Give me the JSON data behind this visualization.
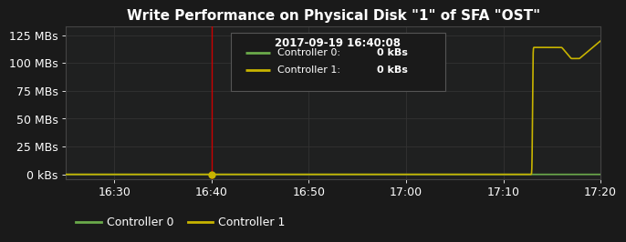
{
  "title": "Write Performance on Physical Disk \"1\" of SFA \"OST\"",
  "background_color": "#1a1a1a",
  "plot_bg_color": "#1f2020",
  "grid_color": "#333333",
  "text_color": "#ffffff",
  "ylabel_ticks": [
    "0 kBs",
    "25 MBs",
    "50 MBs",
    "75 MBs",
    "100 MBs",
    "125 MBs"
  ],
  "ylabel_values": [
    0,
    25,
    50,
    75,
    100,
    125
  ],
  "ylim": [
    -4,
    133
  ],
  "xlim_min": 0,
  "xlim_max": 55,
  "xtick_labels": [
    "16:30",
    "16:40",
    "16:50",
    "17:00",
    "17:10",
    "17:20"
  ],
  "xtick_positions": [
    5,
    15,
    25,
    35,
    45,
    55
  ],
  "controller0_color": "#6aaa4a",
  "controller1_color": "#c8b400",
  "crosshair_color": "#cc0000",
  "crosshair_x": 15,
  "tooltip_text": "2017-09-19 16:40:08",
  "tooltip_bg": "#1a1a1a",
  "tooltip_border": "#555555",
  "title_fontsize": 11,
  "tick_fontsize": 9,
  "legend_fontsize": 9
}
